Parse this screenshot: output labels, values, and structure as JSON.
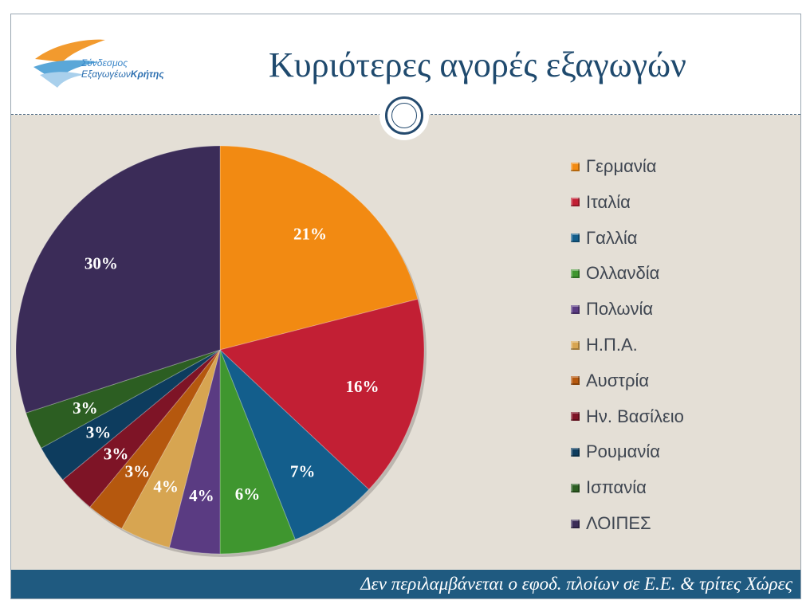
{
  "header": {
    "title": "Κυριότερες αγορές εξαγωγών",
    "logo_line1": "Σύνδεσμος",
    "logo_line2_a": "Εξαγωγέων",
    "logo_line2_b": "Κρήτης"
  },
  "footer": {
    "note": "Δεν περιλαμβάνεται ο εφοδ. πλοίων σε Ε.Ε. & τρίτες Χώρες"
  },
  "chart_data": {
    "type": "pie",
    "title": "",
    "start_angle_deg": 0,
    "direction": "clockwise",
    "legend_position": "right",
    "categories": [
      "Γερμανία",
      "Ιταλία",
      "Γαλλία",
      "Ολλανδία",
      "Πολωνία",
      "Η.Π.Α.",
      "Αυστρία",
      "Ην. Βασίλειο",
      "Ρουμανία",
      "Ισπανία",
      "ΛΟΙΠΕΣ"
    ],
    "values": [
      21,
      16,
      7,
      6,
      4,
      4,
      3,
      3,
      3,
      3,
      30
    ],
    "labels": [
      "21%",
      "16%",
      "7%",
      "6%",
      "4%",
      "4%",
      "3%",
      "3%",
      "3%",
      "3%",
      "30%"
    ],
    "colors": [
      "#f28a12",
      "#c21f34",
      "#135e8c",
      "#3f962f",
      "#5a3b82",
      "#d7a551",
      "#b5580e",
      "#7e1426",
      "#0d3c5e",
      "#2c5e22",
      "#3b2c58"
    ]
  }
}
